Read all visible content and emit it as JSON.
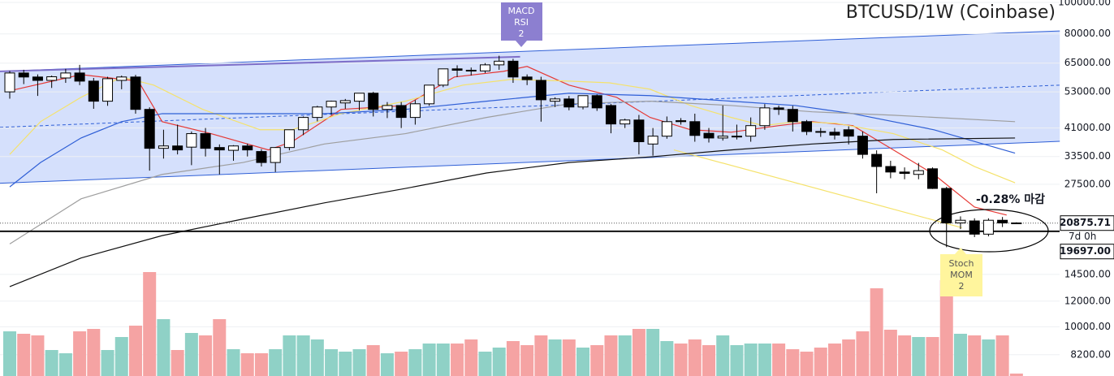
{
  "chart_data": {
    "type": "candlestick",
    "title": "BTCUSD/1W (Coinbase)",
    "log_scale": true,
    "grid": true,
    "ylim": [
      7050,
      101750
    ],
    "yticks": [
      {
        "value": 100000,
        "label": "100000.00"
      },
      {
        "value": 80000,
        "label": "80000.00"
      },
      {
        "value": 65000,
        "label": "65000.00"
      },
      {
        "value": 53000,
        "label": "53000.00"
      },
      {
        "value": 41000,
        "label": "41000.00"
      },
      {
        "value": 33500,
        "label": "33500.00"
      },
      {
        "value": 27500,
        "label": "27500.00"
      },
      {
        "value": 14500,
        "label": "14500.00"
      },
      {
        "value": 12000,
        "label": "12000.00"
      },
      {
        "value": 10000,
        "label": "10000.00"
      },
      {
        "value": 8200,
        "label": "8200.00"
      }
    ],
    "up_color": "#ffffff",
    "down_color": "#000000",
    "up_volume_color": "#8fd1c6",
    "down_volume_color": "#f5a3a3",
    "candles": {
      "open": [
        53000,
        60600,
        58900,
        57500,
        58500,
        60600,
        57200,
        49600,
        57500,
        58900,
        46800,
        35500,
        36100,
        35800,
        39400,
        35700,
        35000,
        36100,
        34700,
        32100,
        35700,
        40500,
        44200,
        47600,
        49000,
        49600,
        52500,
        46800,
        48100,
        44200,
        48700,
        55600,
        62400,
        61800,
        61500,
        64200,
        65900,
        58900,
        57500,
        49600,
        50400,
        47600,
        51600,
        48100,
        42200,
        43400,
        36600,
        38700,
        43200,
        42900,
        39500,
        38200,
        38500,
        38700,
        41700,
        47300,
        46800,
        42900,
        40000,
        39800,
        40500,
        38700,
        34000,
        31200,
        30000,
        29500,
        30700,
        26700,
        20900,
        21200,
        19300,
        21300,
        20900
      ],
      "high": [
        61500,
        62000,
        60000,
        59500,
        62400,
        64200,
        58500,
        59000,
        59500,
        59800,
        47500,
        40500,
        42000,
        40000,
        41000,
        36500,
        36300,
        36700,
        35300,
        35800,
        40500,
        44500,
        48000,
        49800,
        50400,
        52500,
        53000,
        49300,
        49300,
        50000,
        55600,
        62400,
        64000,
        63000,
        65000,
        68500,
        67000,
        60000,
        59000,
        51000,
        51500,
        51600,
        52000,
        48600,
        43800,
        45000,
        41000,
        44500,
        44000,
        45400,
        41000,
        48100,
        42000,
        44200,
        48600,
        48100,
        48000,
        43400,
        41000,
        41000,
        41500,
        40000,
        35000,
        32500,
        31000,
        32000,
        31000,
        27000,
        21900,
        21600,
        21600,
        21800,
        21000
      ],
      "low": [
        50500,
        56000,
        51500,
        54500,
        56500,
        55600,
        47000,
        48000,
        54000,
        45400,
        30300,
        33000,
        34000,
        31500,
        33500,
        29500,
        32500,
        33500,
        31200,
        30000,
        35000,
        39000,
        43000,
        45000,
        47000,
        46500,
        44500,
        44000,
        41000,
        42000,
        48000,
        54800,
        58900,
        59500,
        60600,
        62000,
        56500,
        55600,
        42900,
        47600,
        46500,
        46800,
        46300,
        39500,
        41000,
        34000,
        33700,
        38000,
        42000,
        37200,
        37000,
        37500,
        37800,
        37200,
        40500,
        45000,
        40000,
        39000,
        38500,
        37800,
        36500,
        33000,
        25800,
        28700,
        28500,
        28500,
        26600,
        17600,
        20000,
        18900,
        19000,
        20300,
        20800
      ],
      "close": [
        60600,
        58900,
        57500,
        59000,
        60600,
        57200,
        49600,
        58200,
        58900,
        46800,
        35500,
        36100,
        35100,
        39400,
        35500,
        35100,
        36100,
        35100,
        32100,
        35700,
        40500,
        44200,
        47600,
        49600,
        49800,
        52500,
        46800,
        48100,
        44200,
        48700,
        55600,
        62400,
        61800,
        61500,
        64200,
        65900,
        58900,
        57800,
        50100,
        50400,
        47600,
        51600,
        47300,
        42200,
        43400,
        37200,
        38700,
        42900,
        42900,
        38900,
        38200,
        38700,
        38700,
        41700,
        47300,
        46800,
        42900,
        40000,
        39800,
        39000,
        38700,
        34000,
        31200,
        30000,
        29700,
        30300,
        26700,
        20900,
        21300,
        19300,
        21300,
        20900,
        20875.71
      ]
    },
    "volume": [
      55,
      52,
      50,
      32,
      28,
      55,
      58,
      32,
      48,
      62,
      128,
      70,
      32,
      53,
      50,
      70,
      33,
      28,
      28,
      33,
      50,
      50,
      45,
      33,
      30,
      33,
      38,
      28,
      30,
      33,
      40,
      40,
      40,
      45,
      30,
      35,
      43,
      38,
      50,
      45,
      45,
      35,
      38,
      50,
      50,
      58,
      58,
      43,
      40,
      45,
      38,
      50,
      38,
      40,
      40,
      40,
      33,
      30,
      35,
      40,
      45,
      55,
      108,
      57,
      50,
      48,
      48,
      118,
      52,
      50,
      45,
      50,
      3
    ],
    "lines": [
      {
        "color": "#e53935",
        "x": [
          0,
          5.1,
          9.2,
          10.9,
          14.4,
          18.5,
          20.2,
          23.7,
          28.3,
          31.8,
          35.3,
          37,
          40,
          43.4,
          45.8,
          48.7,
          51.6,
          55,
          57.4,
          60.3,
          63.2,
          66.1,
          69,
          71.3
        ],
        "values": [
          53400,
          59900,
          57200,
          42900,
          39400,
          35100,
          37200,
          46800,
          48100,
          58900,
          61300,
          63500,
          55600,
          51000,
          44200,
          40500,
          39800,
          41700,
          42900,
          41700,
          35100,
          29500,
          23400,
          22100
        ]
      },
      {
        "color": "#f5e26b",
        "x": [
          0,
          2.2,
          5.1,
          8,
          10.3,
          13.8,
          17.9,
          20.2,
          23.7,
          28.3,
          32.4,
          35.9,
          40,
          42.9,
          45.8,
          48.7,
          51.6,
          53.9,
          56.2,
          59.1,
          63.2,
          66.7,
          69,
          71.9
        ],
        "values": [
          34000,
          42900,
          51000,
          58900,
          55600,
          46800,
          40500,
          40500,
          45400,
          49600,
          55600,
          57900,
          57200,
          56500,
          54000,
          48100,
          44200,
          41700,
          42900,
          42400,
          39400,
          35100,
          31200,
          27800
        ]
      },
      {
        "color": "#f5e26b",
        "x": [
          47.5,
          68.1
        ],
        "values": [
          35100,
          20200
        ]
      },
      {
        "color": "#2f5fd6",
        "x": [
          0,
          2.2,
          5.1,
          8,
          10.9,
          16.7,
          22.5,
          28.3,
          34.1,
          40,
          45.8,
          51.6,
          56.2,
          60.3,
          66.1,
          71.9
        ],
        "values": [
          27000,
          32100,
          38200,
          42900,
          45400,
          45400,
          45400,
          46800,
          49600,
          52500,
          51600,
          49600,
          48100,
          45400,
          40500,
          34300
        ]
      },
      {
        "color": "#9e9e9e",
        "x": [
          0,
          5.1,
          10.9,
          16.7,
          22.5,
          28.3,
          34.1,
          40,
          45.8,
          51.6,
          57.4,
          63.2,
          71.9
        ],
        "values": [
          18000,
          24800,
          29500,
          32100,
          36600,
          39400,
          44200,
          48700,
          49600,
          48100,
          46000,
          44900,
          42900
        ]
      },
      {
        "color": "#111111",
        "x": [
          0,
          5.1,
          10.9,
          16.7,
          22.5,
          28.3,
          34.1,
          40,
          45.8,
          51.6,
          57.4,
          63.2,
          71.9
        ],
        "values": [
          13300,
          16300,
          19100,
          21500,
          24100,
          26700,
          29800,
          32100,
          33400,
          35100,
          36600,
          37800,
          38200
        ]
      },
      {
        "color": "#7e6fc9",
        "x": [
          -0.7,
          36.5
        ],
        "values": [
          61300,
          68000
        ]
      }
    ],
    "channel": {
      "color": "#2f5fd6",
      "fill": "#d3defc",
      "x": [
        -0.7,
        75.1
      ],
      "upper": [
        61300,
        81700
      ],
      "middle": [
        41200,
        55600
      ],
      "lower": [
        27700,
        37300
      ]
    },
    "last_price": 20875.71,
    "countdown": "7d 0h",
    "low_level": {
      "value": 19697,
      "label": "19697.00"
    },
    "annotations": [
      {
        "lines": [
          "MACD",
          "RSI",
          "2"
        ],
        "color": "#8c7fd0"
      },
      {
        "lines": [
          "Stoch",
          "MOM",
          "2"
        ],
        "color": "#fff59d"
      },
      {
        "text": "-0.28% 마감"
      }
    ]
  }
}
